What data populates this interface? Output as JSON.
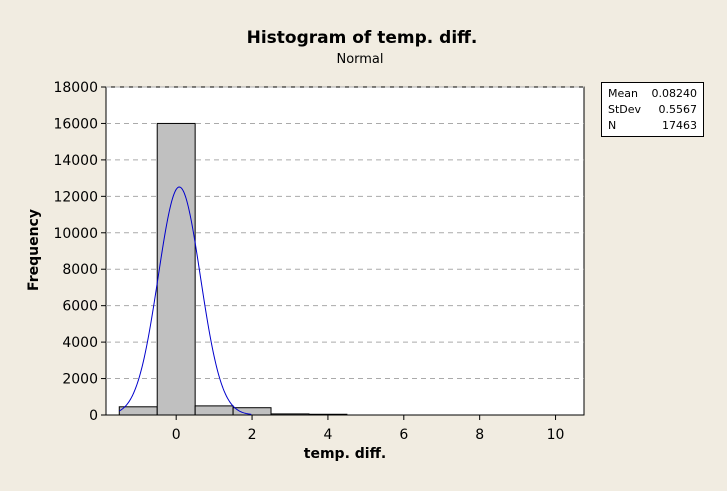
{
  "chart_data": {
    "type": "bar",
    "title": "Histogram of temp. diff.",
    "subtitle": "Normal",
    "xlabel": "temp. diff.",
    "ylabel": "Frequency",
    "xlim": [
      -1.85,
      10.75
    ],
    "ylim": [
      0,
      18000
    ],
    "xticks": [
      "0",
      "2",
      "4",
      "6",
      "8",
      "10"
    ],
    "xtick_values": [
      0,
      2,
      4,
      6,
      8,
      10
    ],
    "yticks": [
      "0",
      "2000",
      "4000",
      "6000",
      "8000",
      "10000",
      "12000",
      "14000",
      "16000",
      "18000"
    ],
    "ytick_values": [
      0,
      2000,
      4000,
      6000,
      8000,
      10000,
      12000,
      14000,
      16000,
      18000
    ],
    "grid": "horizontal dashed",
    "bins": [
      {
        "start": -1.5,
        "end": -0.5,
        "value": 450
      },
      {
        "start": -0.5,
        "end": 0.5,
        "value": 16000
      },
      {
        "start": 0.5,
        "end": 1.5,
        "value": 500
      },
      {
        "start": 1.5,
        "end": 2.5,
        "value": 400
      },
      {
        "start": 2.5,
        "end": 3.5,
        "value": 60
      },
      {
        "start": 3.5,
        "end": 4.5,
        "value": 40
      }
    ],
    "fit": {
      "mean": 0.0824,
      "stdev": 0.5567,
      "n": 17463,
      "bin_width": 1
    }
  },
  "stats": {
    "mean_label": "Mean",
    "mean_value": "0.08240",
    "stdev_label": "StDev",
    "stdev_value": "0.5567",
    "n_label": "N",
    "n_value": "17463"
  },
  "colors": {
    "background": "#f1ece1",
    "plot_area": "#ffffff",
    "bar_fill": "#c0c0c0",
    "bar_stroke": "#000000",
    "fit_curve": "#0000cc",
    "grid": "#aaaaaa"
  }
}
